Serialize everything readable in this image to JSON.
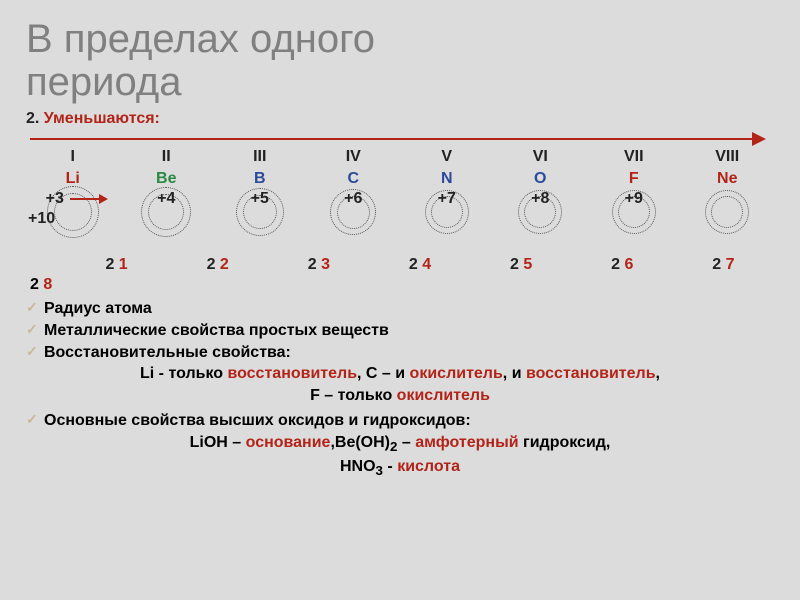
{
  "title_line1": "В пределах одного",
  "title_line2": "периода",
  "section": {
    "num": "2. ",
    "word": "Уменьшаются:"
  },
  "roman": [
    "I",
    "II",
    "III",
    "IV",
    "V",
    "VI",
    "VII",
    "VIII"
  ],
  "elements": [
    {
      "sym": "Li",
      "color": "#b32418"
    },
    {
      "sym": "Be",
      "color": "#2a8a43"
    },
    {
      "sym": "B",
      "color": "#2a4a9a"
    },
    {
      "sym": "C",
      "color": "#2a4a9a"
    },
    {
      "sym": "N",
      "color": "#2a4a9a"
    },
    {
      "sym": "O",
      "color": "#2a4a9a"
    },
    {
      "sym": "F",
      "color": "#b32418"
    },
    {
      "sym": "Ne",
      "color": "#b32418"
    }
  ],
  "charges_top": [
    "+3",
    "+4",
    "+5",
    "+6",
    "+7",
    "+8",
    "+9",
    ""
  ],
  "charges_bot_left": "+10",
  "electrons": [
    {
      "a": "2 ",
      "b": "1"
    },
    {
      "a": "2 ",
      "b": "2"
    },
    {
      "a": "2 ",
      "b": "3"
    },
    {
      "a": "2 ",
      "b": "4"
    },
    {
      "a": "2 ",
      "b": "5"
    },
    {
      "a": "2 ",
      "b": "6"
    },
    {
      "a": "2 ",
      "b": "7"
    }
  ],
  "electrons_bot": {
    "a": "2 ",
    "b": "8"
  },
  "bul1": "Радиус атома",
  "bul2": "Металлические свойства простых веществ",
  "bul3": "Восстановительные свойства:",
  "line_redox1": {
    "p1": "Li - только ",
    "p2": "восстановитель",
    "p3": ", C – и ",
    "p4": "окислитель",
    "p5": ", и ",
    "p6": "восстановитель",
    "p7": ","
  },
  "line_redox2": {
    "p1": "F",
    "p2": " – только ",
    "p3": "окислитель"
  },
  "bul4": "Основные свойства высших оксидов и гидроксидов:",
  "line_oxides": {
    "p1": "LiOH – ",
    "p2": "основание",
    "p3": ",Be(OH)",
    "sub": "2",
    "p4": " – ",
    "p5": "амфотерный",
    "p6": " гидроксид,"
  },
  "line_acid": {
    "p1": "HNO",
    "sub": "3",
    "p2": " - ",
    "p3": "кислота"
  },
  "atoms_ring_diams": [
    [
      52,
      38
    ],
    [
      50,
      36
    ],
    [
      48,
      34
    ],
    [
      46,
      33
    ],
    [
      44,
      32
    ],
    [
      44,
      32
    ],
    [
      44,
      32
    ],
    [
      44,
      32
    ]
  ],
  "colors": {
    "red": "#b32418",
    "green": "#2a8a43",
    "blue": "#2a4a9a",
    "grey": "#808080",
    "bg": "#dcdcdc"
  }
}
